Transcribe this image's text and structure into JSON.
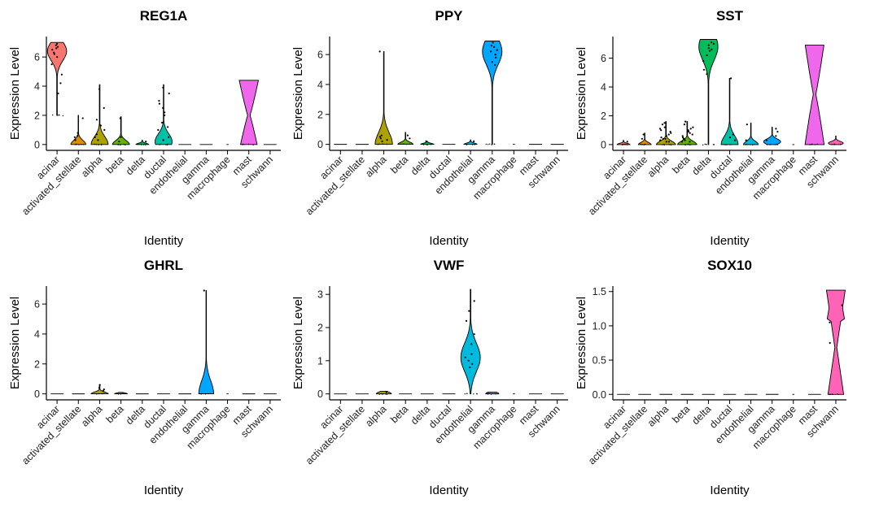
{
  "chart_data": [
    {
      "type": "violin",
      "title": "REG1A",
      "xlabel": "Identity",
      "ylabel": "Expression Level",
      "ylim": [
        -0.4,
        7.4
      ],
      "yticks": [
        0,
        2,
        4,
        6
      ],
      "yticklabels": [
        "0",
        "2",
        "4",
        "6"
      ],
      "categories": [
        "acinar",
        "activated_stellate",
        "alpha",
        "beta",
        "delta",
        "ductal",
        "endothelial",
        "gamma",
        "macrophage",
        "mast",
        "schwann"
      ],
      "fill_colors": [
        "#F8766D",
        "#DB8E00",
        "#AEA200",
        "#64B200",
        "#00BD5C",
        "#00C1A7",
        "#00BADE",
        "#00A6FF",
        "#B385FF",
        "#EF67EB",
        "#FF63B6"
      ],
      "violins": [
        {
          "category": "acinar",
          "min": 2.0,
          "max": 7.0,
          "peak": 6.4,
          "width": 0.45,
          "points": [
            6.9,
            6.7,
            6.5,
            6.3,
            6.6,
            6.0,
            5.5,
            4.8,
            3.5,
            6.8,
            6.2,
            4.2
          ]
        },
        {
          "category": "activated_stellate",
          "min": 0,
          "max": 2.0,
          "peak": 0,
          "width": 0.35,
          "points": [
            0.5,
            0.8,
            1.8,
            0.3,
            0.6
          ]
        },
        {
          "category": "alpha",
          "min": 0,
          "max": 4.1,
          "peak": 0,
          "width": 0.4,
          "points": [
            0.3,
            0.5,
            1.0,
            1.7,
            2.5,
            3.8,
            0.7,
            1.3
          ]
        },
        {
          "category": "beta",
          "min": 0,
          "max": 1.9,
          "peak": 0,
          "width": 0.4,
          "points": [
            0.2,
            1.8,
            0.5
          ]
        },
        {
          "category": "delta",
          "min": 0,
          "max": 0.3,
          "peak": 0,
          "width": 0.3,
          "points": [
            0.2
          ]
        },
        {
          "category": "ductal",
          "min": 0,
          "max": 4.1,
          "peak": 0.2,
          "width": 0.4,
          "points": [
            0.5,
            1.0,
            1.5,
            2.0,
            2.5,
            3.0,
            3.5,
            3.9,
            1.2,
            2.2,
            0.3,
            2.8
          ]
        },
        {
          "category": "endothelial",
          "min": 0,
          "max": 0,
          "peak": 0,
          "width": 0.3,
          "points": []
        },
        {
          "category": "gamma",
          "min": 0,
          "max": 0,
          "peak": 0,
          "width": 0.3,
          "points": []
        },
        {
          "category": "macrophage",
          "min": 0,
          "max": 0,
          "peak": 0,
          "width": 0.05,
          "points": []
        },
        {
          "category": "mast",
          "min": 0,
          "max": 4.4,
          "peak": 2.0,
          "width": 0.45,
          "shape": "hourglass",
          "points": []
        },
        {
          "category": "schwann",
          "min": 0,
          "max": 0,
          "peak": 0,
          "width": 0.3,
          "points": []
        }
      ]
    },
    {
      "type": "violin",
      "title": "PPY",
      "xlabel": "Identity",
      "ylabel": "Expression Level",
      "ylim": [
        -0.4,
        7.2
      ],
      "yticks": [
        0,
        2,
        4,
        6
      ],
      "yticklabels": [
        "0",
        "2",
        "4",
        "6"
      ],
      "categories": [
        "acinar",
        "activated_stellate",
        "alpha",
        "beta",
        "delta",
        "ductal",
        "endothelial",
        "gamma",
        "macrophage",
        "mast",
        "schwann"
      ],
      "fill_colors": [
        "#F8766D",
        "#DB8E00",
        "#AEA200",
        "#64B200",
        "#00BD5C",
        "#00C1A7",
        "#00BADE",
        "#00A6FF",
        "#B385FF",
        "#EF67EB",
        "#FF63B6"
      ],
      "violins": [
        {
          "category": "acinar",
          "min": 0,
          "max": 0,
          "peak": 0,
          "width": 0.3,
          "points": []
        },
        {
          "category": "activated_stellate",
          "min": 0,
          "max": 0,
          "peak": 0,
          "width": 0.3,
          "points": []
        },
        {
          "category": "alpha",
          "min": 0,
          "max": 6.2,
          "peak": 0,
          "width": 0.4,
          "points": [
            0.2,
            0.4,
            0.6,
            0.3,
            6.2,
            0.5
          ]
        },
        {
          "category": "beta",
          "min": 0,
          "max": 0.8,
          "peak": 0,
          "width": 0.35,
          "points": [
            0.4,
            0.6
          ]
        },
        {
          "category": "delta",
          "min": 0,
          "max": 0.2,
          "peak": 0,
          "width": 0.3,
          "points": [
            0.2
          ]
        },
        {
          "category": "ductal",
          "min": 0,
          "max": 0,
          "peak": 0,
          "width": 0.3,
          "points": []
        },
        {
          "category": "endothelial",
          "min": 0,
          "max": 0.3,
          "peak": 0,
          "width": 0.3,
          "points": [
            0.2
          ]
        },
        {
          "category": "gamma",
          "min": 0,
          "max": 6.9,
          "peak": 6.2,
          "width": 0.45,
          "points": [
            6.8,
            6.5,
            6.2,
            6.0,
            5.8,
            5.5,
            6.6,
            6.3,
            5.3
          ]
        },
        {
          "category": "macrophage",
          "min": 0,
          "max": 0,
          "peak": 0,
          "width": 0.05,
          "points": []
        },
        {
          "category": "mast",
          "min": 0,
          "max": 0,
          "peak": 0,
          "width": 0.3,
          "points": []
        },
        {
          "category": "schwann",
          "min": 0,
          "max": 0,
          "peak": 0,
          "width": 0.3,
          "points": []
        }
      ]
    },
    {
      "type": "violin",
      "title": "SST",
      "xlabel": "Identity",
      "ylabel": "Expression Level",
      "ylim": [
        -0.4,
        7.5
      ],
      "yticks": [
        0,
        2,
        4,
        6
      ],
      "yticklabels": [
        "0",
        "2",
        "4",
        "6"
      ],
      "categories": [
        "acinar",
        "activated_stellate",
        "alpha",
        "beta",
        "delta",
        "ductal",
        "endothelial",
        "gamma",
        "macrophage",
        "mast",
        "schwann"
      ],
      "fill_colors": [
        "#F8766D",
        "#DB8E00",
        "#AEA200",
        "#64B200",
        "#00BD5C",
        "#00C1A7",
        "#00BADE",
        "#00A6FF",
        "#B385FF",
        "#EF67EB",
        "#FF63B6"
      ],
      "violins": [
        {
          "category": "acinar",
          "min": 0,
          "max": 0.3,
          "peak": 0,
          "width": 0.3,
          "points": [
            0.2
          ]
        },
        {
          "category": "activated_stellate",
          "min": 0,
          "max": 0.8,
          "peak": 0,
          "width": 0.3,
          "points": [
            0.4,
            0.7
          ]
        },
        {
          "category": "alpha",
          "min": 0,
          "max": 1.6,
          "peak": 0,
          "width": 0.45,
          "points": [
            0.2,
            0.4,
            0.6,
            0.8,
            1.0,
            1.2,
            1.4,
            1.5,
            0.3,
            0.5,
            0.7,
            0.9,
            1.1,
            0.2,
            0.4
          ]
        },
        {
          "category": "beta",
          "min": 0,
          "max": 1.6,
          "peak": 0,
          "width": 0.45,
          "points": [
            0.2,
            0.4,
            0.6,
            0.8,
            1.0,
            1.2,
            1.4,
            1.6,
            0.3,
            0.5,
            0.7,
            0.9,
            1.1,
            0.2,
            0.4
          ]
        },
        {
          "category": "delta",
          "min": 0,
          "max": 7.3,
          "peak": 6.8,
          "width": 0.45,
          "points": [
            7.1,
            6.9,
            6.7,
            6.5,
            6.2,
            5.8,
            5.2,
            4.9,
            7.0,
            6.6
          ]
        },
        {
          "category": "ductal",
          "min": 0,
          "max": 4.6,
          "peak": 0,
          "width": 0.4,
          "points": [
            0.3,
            0.7,
            4.6,
            0.5
          ]
        },
        {
          "category": "endothelial",
          "min": 0,
          "max": 1.5,
          "peak": 0,
          "width": 0.35,
          "points": [
            1.4,
            0.3
          ]
        },
        {
          "category": "gamma",
          "min": 0,
          "max": 1.2,
          "peak": 0.2,
          "width": 0.4,
          "points": [
            0.3,
            0.6,
            0.9,
            1.1
          ]
        },
        {
          "category": "macrophage",
          "min": 0,
          "max": 0,
          "peak": 0,
          "width": 0.05,
          "points": []
        },
        {
          "category": "mast",
          "min": 0,
          "max": 6.9,
          "peak": 3.5,
          "width": 0.45,
          "shape": "hourglass",
          "points": []
        },
        {
          "category": "schwann",
          "min": 0,
          "max": 0.6,
          "peak": 0.1,
          "width": 0.35,
          "points": []
        }
      ]
    },
    {
      "type": "violin",
      "title": "GHRL",
      "xlabel": "Identity",
      "ylabel": "Expression Level",
      "ylim": [
        -0.4,
        7.2
      ],
      "yticks": [
        0,
        2,
        4,
        6
      ],
      "yticklabels": [
        "0",
        "2",
        "4",
        "6"
      ],
      "categories": [
        "acinar",
        "activated_stellate",
        "alpha",
        "beta",
        "delta",
        "ductal",
        "endothelial",
        "gamma",
        "macrophage",
        "mast",
        "schwann"
      ],
      "fill_colors": [
        "#F8766D",
        "#DB8E00",
        "#AEA200",
        "#64B200",
        "#00BD5C",
        "#00C1A7",
        "#00BADE",
        "#00A6FF",
        "#B385FF",
        "#EF67EB",
        "#FF63B6"
      ],
      "violins": [
        {
          "category": "acinar",
          "min": 0,
          "max": 0,
          "peak": 0,
          "width": 0.3,
          "points": []
        },
        {
          "category": "activated_stellate",
          "min": 0,
          "max": 0,
          "peak": 0,
          "width": 0.3,
          "points": []
        },
        {
          "category": "alpha",
          "min": 0,
          "max": 0.6,
          "peak": 0,
          "width": 0.4,
          "points": [
            0.2,
            0.4,
            0.6,
            0.3
          ]
        },
        {
          "category": "beta",
          "min": 0,
          "max": 0.1,
          "peak": 0,
          "width": 0.3,
          "points": []
        },
        {
          "category": "delta",
          "min": 0,
          "max": 0,
          "peak": 0,
          "width": 0.3,
          "points": []
        },
        {
          "category": "ductal",
          "min": 0,
          "max": 0,
          "peak": 0,
          "width": 0.3,
          "points": []
        },
        {
          "category": "endothelial",
          "min": 0,
          "max": 0,
          "peak": 0,
          "width": 0.3,
          "points": []
        },
        {
          "category": "gamma",
          "min": 0,
          "max": 6.9,
          "peak": 0,
          "width": 0.35,
          "points": [
            6.9
          ]
        },
        {
          "category": "macrophage",
          "min": 0,
          "max": 0,
          "peak": 0,
          "width": 0.05,
          "points": []
        },
        {
          "category": "mast",
          "min": 0,
          "max": 0,
          "peak": 0,
          "width": 0.3,
          "points": []
        },
        {
          "category": "schwann",
          "min": 0,
          "max": 0,
          "peak": 0,
          "width": 0.3,
          "points": []
        }
      ]
    },
    {
      "type": "violin",
      "title": "VWF",
      "xlabel": "Identity",
      "ylabel": "Expression Level",
      "ylim": [
        -0.18,
        3.25
      ],
      "yticks": [
        0,
        1,
        2,
        3
      ],
      "yticklabels": [
        "0",
        "1",
        "2",
        "3"
      ],
      "categories": [
        "acinar",
        "activated_stellate",
        "alpha",
        "beta",
        "delta",
        "ductal",
        "endothelial",
        "gamma",
        "macrophage",
        "mast",
        "schwann"
      ],
      "fill_colors": [
        "#F8766D",
        "#DB8E00",
        "#AEA200",
        "#64B200",
        "#00BD5C",
        "#00C1A7",
        "#00BADE",
        "#00A6FF",
        "#B385FF",
        "#EF67EB",
        "#FF63B6"
      ],
      "violins": [
        {
          "category": "acinar",
          "min": 0,
          "max": 0,
          "peak": 0,
          "width": 0.3,
          "points": []
        },
        {
          "category": "activated_stellate",
          "min": 0,
          "max": 0,
          "peak": 0,
          "width": 0.3,
          "points": []
        },
        {
          "category": "alpha",
          "min": 0,
          "max": 0.08,
          "peak": 0,
          "width": 0.35,
          "points": [
            0.05
          ]
        },
        {
          "category": "beta",
          "min": 0,
          "max": 0,
          "peak": 0,
          "width": 0.3,
          "points": []
        },
        {
          "category": "delta",
          "min": 0,
          "max": 0,
          "peak": 0,
          "width": 0.3,
          "points": []
        },
        {
          "category": "ductal",
          "min": 0,
          "max": 0,
          "peak": 0,
          "width": 0.3,
          "points": []
        },
        {
          "category": "endothelial",
          "min": 0,
          "max": 3.15,
          "peak": 1.1,
          "width": 0.45,
          "points": [
            2.8,
            2.2,
            1.8,
            1.5,
            1.2,
            1.0,
            0.9,
            1.1,
            0.8,
            2.5
          ]
        },
        {
          "category": "gamma",
          "min": 0,
          "max": 0.05,
          "peak": 0,
          "width": 0.3,
          "points": []
        },
        {
          "category": "macrophage",
          "min": 0,
          "max": 0,
          "peak": 0,
          "width": 0.05,
          "points": []
        },
        {
          "category": "mast",
          "min": 0,
          "max": 0,
          "peak": 0,
          "width": 0.3,
          "points": []
        },
        {
          "category": "schwann",
          "min": 0,
          "max": 0,
          "peak": 0,
          "width": 0.3,
          "points": []
        }
      ]
    },
    {
      "type": "violin",
      "title": "SOX10",
      "xlabel": "Identity",
      "ylabel": "Expression Level",
      "ylim": [
        -0.08,
        1.58
      ],
      "yticks": [
        0,
        0.5,
        1.0,
        1.5
      ],
      "yticklabels": [
        "0.0",
        "0.5",
        "1.0",
        "1.5"
      ],
      "categories": [
        "acinar",
        "activated_stellate",
        "alpha",
        "beta",
        "delta",
        "ductal",
        "endothelial",
        "gamma",
        "macrophage",
        "mast",
        "schwann"
      ],
      "fill_colors": [
        "#F8766D",
        "#DB8E00",
        "#AEA200",
        "#64B200",
        "#00BD5C",
        "#00C1A7",
        "#00BADE",
        "#00A6FF",
        "#B385FF",
        "#EF67EB",
        "#FF63B6"
      ],
      "violins": [
        {
          "category": "acinar",
          "min": 0,
          "max": 0,
          "peak": 0,
          "width": 0.3,
          "points": []
        },
        {
          "category": "activated_stellate",
          "min": 0,
          "max": 0,
          "peak": 0,
          "width": 0.3,
          "points": []
        },
        {
          "category": "alpha",
          "min": 0,
          "max": 0,
          "peak": 0,
          "width": 0.3,
          "points": []
        },
        {
          "category": "beta",
          "min": 0,
          "max": 0,
          "peak": 0,
          "width": 0.3,
          "points": []
        },
        {
          "category": "delta",
          "min": 0,
          "max": 0,
          "peak": 0,
          "width": 0.3,
          "points": []
        },
        {
          "category": "ductal",
          "min": 0,
          "max": 0,
          "peak": 0,
          "width": 0.3,
          "points": []
        },
        {
          "category": "endothelial",
          "min": 0,
          "max": 0,
          "peak": 0,
          "width": 0.3,
          "points": []
        },
        {
          "category": "gamma",
          "min": 0,
          "max": 0,
          "peak": 0,
          "width": 0.3,
          "points": []
        },
        {
          "category": "macrophage",
          "min": 0,
          "max": 0,
          "peak": 0,
          "width": 0.05,
          "points": []
        },
        {
          "category": "mast",
          "min": 0,
          "max": 0,
          "peak": 0,
          "width": 0.3,
          "points": []
        },
        {
          "category": "schwann",
          "min": 0,
          "max": 1.52,
          "peak": 1.1,
          "width": 0.45,
          "shape": "hourglass-low",
          "points": [
            1.3,
            1.05,
            0.75
          ]
        }
      ]
    }
  ]
}
